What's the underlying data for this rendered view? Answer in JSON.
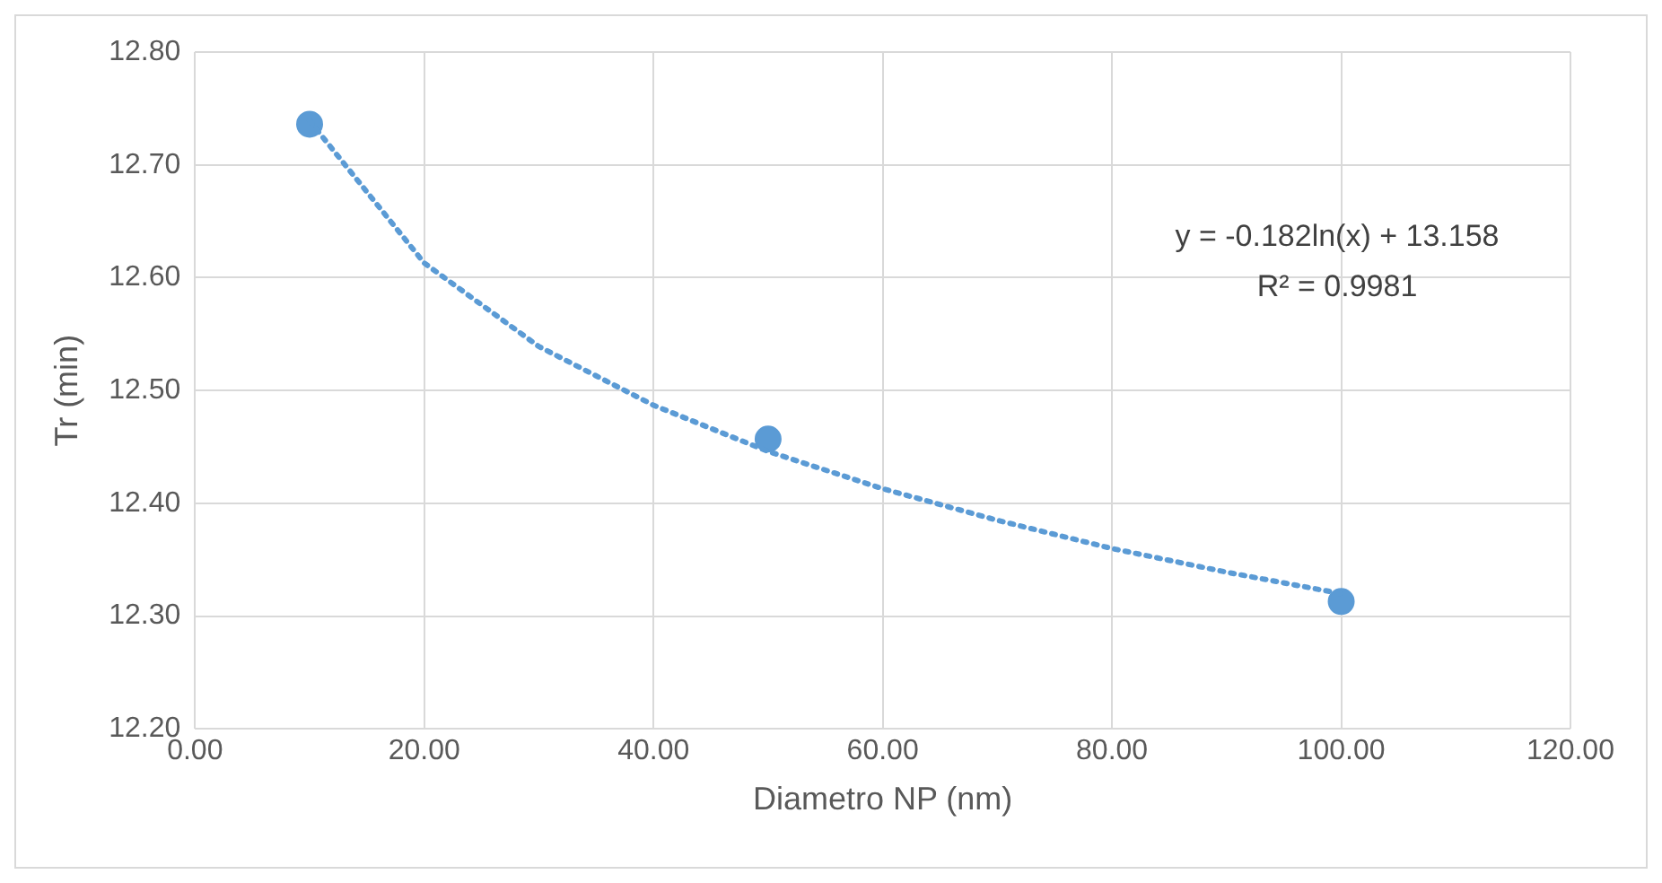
{
  "chart_data": {
    "type": "scatter",
    "xlabel": "Diametro NP (nm)",
    "ylabel": "Tr (min)",
    "xlim": [
      0,
      120
    ],
    "xticks": [
      {
        "value": 0,
        "label": "0.00"
      },
      {
        "value": 20,
        "label": "20.00"
      },
      {
        "value": 40,
        "label": "40.00"
      },
      {
        "value": 60,
        "label": "60.00"
      },
      {
        "value": 80,
        "label": "80.00"
      },
      {
        "value": 100,
        "label": "100.00"
      },
      {
        "value": 120,
        "label": "120.00"
      }
    ],
    "ylim": [
      12.2,
      12.8
    ],
    "yticks": [
      {
        "value": 12.2,
        "label": "12.20"
      },
      {
        "value": 12.3,
        "label": "12.30"
      },
      {
        "value": 12.4,
        "label": "12.40"
      },
      {
        "value": 12.5,
        "label": "12.50"
      },
      {
        "value": 12.6,
        "label": "12.60"
      },
      {
        "value": 12.7,
        "label": "12.70"
      },
      {
        "value": 12.8,
        "label": "12.80"
      }
    ],
    "grid": true,
    "legend": false,
    "series": [
      {
        "type": "line",
        "color": "#5b9bd5",
        "line_style": "dotted",
        "marker": "none",
        "x": [
          10,
          20,
          30,
          40,
          50,
          60,
          70,
          80,
          90,
          100
        ],
        "values": [
          12.739,
          12.613,
          12.539,
          12.487,
          12.446,
          12.413,
          12.385,
          12.36,
          12.339,
          12.32
        ]
      },
      {
        "color": "#5b9bd5",
        "marker": "circle",
        "x": [
          10,
          50,
          100
        ],
        "values": [
          12.736,
          12.457,
          12.313
        ]
      }
    ],
    "annotations": [
      "y = -0.182ln(x) + 13.158",
      "R² = 0.9981"
    ]
  }
}
